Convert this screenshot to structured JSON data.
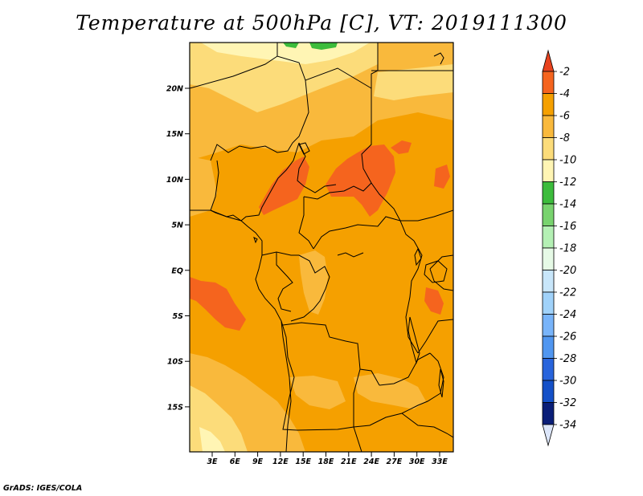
{
  "title": "Temperature at 500hPa [C], VT: 2019111300",
  "credit": "GrADS: IGES/COLA",
  "map": {
    "lat_labels": [
      "20N",
      "15N",
      "10N",
      "5N",
      "EQ",
      "5S",
      "10S",
      "15S"
    ],
    "lon_labels": [
      "3E",
      "6E",
      "9E",
      "12E",
      "15E",
      "18E",
      "21E",
      "24E",
      "27E",
      "30E",
      "33E"
    ],
    "palette": {
      "m2_to_m4": "#f5641e",
      "m4_to_m6": "#f5a000",
      "m6_to_m8": "#f9b93c",
      "m8_to_m10": "#fcdc7a",
      "m10_to_m12": "#fff5b4",
      "m12_to_m14": "#3cbc3c"
    }
  },
  "colorbar": {
    "labels": [
      "-2",
      "-4",
      "-6",
      "-8",
      "-10",
      "-12",
      "-14",
      "-16",
      "-18",
      "-20",
      "-22",
      "-24",
      "-26",
      "-28",
      "-30",
      "-32",
      "-34"
    ],
    "colors": [
      "#e8421e",
      "#f5641e",
      "#f5a000",
      "#f9b93c",
      "#fcdc7a",
      "#fff5b4",
      "#3cbc3c",
      "#78d36e",
      "#b4f0b4",
      "#e6fae6",
      "#c8e6fa",
      "#a0d2fa",
      "#78b4fa",
      "#5096f0",
      "#2864dc",
      "#1450c8",
      "#0a1e78",
      "#dce6fa"
    ]
  }
}
